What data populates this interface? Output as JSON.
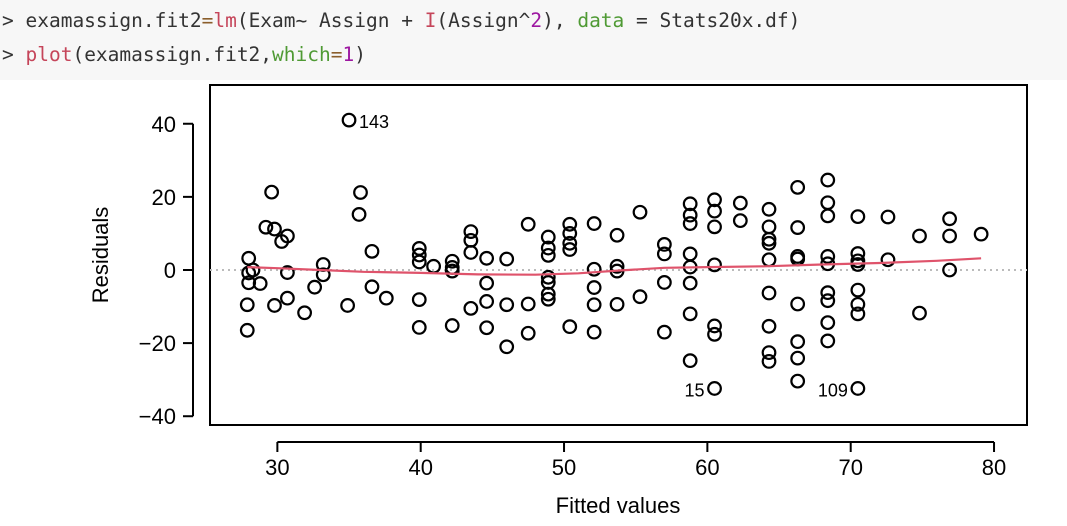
{
  "console": {
    "lines": [
      [
        {
          "t": "> ",
          "c": "def"
        },
        {
          "t": "examassign.fit2",
          "c": "def"
        },
        {
          "t": "=",
          "c": "op"
        },
        {
          "t": "lm",
          "c": "fn"
        },
        {
          "t": "(Exam~ Assign + ",
          "c": "def"
        },
        {
          "t": "I",
          "c": "fn"
        },
        {
          "t": "(Assign^",
          "c": "def"
        },
        {
          "t": "2",
          "c": "num"
        },
        {
          "t": "), ",
          "c": "def"
        },
        {
          "t": "data",
          "c": "arg"
        },
        {
          "t": " = Stats20x.df)",
          "c": "def"
        }
      ],
      [
        {
          "t": "> ",
          "c": "def"
        },
        {
          "t": "plot",
          "c": "fn"
        },
        {
          "t": "(examassign.fit2,",
          "c": "def"
        },
        {
          "t": "which",
          "c": "arg"
        },
        {
          "t": "=",
          "c": "op"
        },
        {
          "t": "1",
          "c": "num"
        },
        {
          "t": ")",
          "c": "def"
        }
      ]
    ]
  },
  "chart_data": {
    "type": "scatter",
    "xlabel": "Fitted values",
    "ylabel": "Residuals",
    "xlim": [
      25.3,
      82.3
    ],
    "ylim": [
      -42.4,
      50.6
    ],
    "xticks": [
      30,
      40,
      50,
      60,
      70,
      80
    ],
    "yticks": [
      -40,
      -20,
      0,
      20,
      40
    ],
    "zero_line": {
      "y": 0,
      "style": "dotted",
      "color": "#bbbbbb"
    },
    "smoother_color": "#df536b",
    "points": [
      [
        35,
        41
      ],
      [
        28.0,
        3.2
      ],
      [
        28.0,
        -0.8
      ],
      [
        28.0,
        -3.5
      ],
      [
        27.9,
        -9.5
      ],
      [
        27.9,
        -16.5
      ],
      [
        28.3,
        0.0
      ],
      [
        28.8,
        -3.7
      ],
      [
        29.2,
        11.7
      ],
      [
        29.6,
        21.3
      ],
      [
        29.8,
        11.2
      ],
      [
        29.8,
        -9.7
      ],
      [
        30.3,
        7.8
      ],
      [
        30.7,
        9.3
      ],
      [
        30.7,
        -0.7
      ],
      [
        30.7,
        -7.7
      ],
      [
        31.9,
        -11.7
      ],
      [
        32.6,
        -4.7
      ],
      [
        33.2,
        1.5
      ],
      [
        33.2,
        -1.3
      ],
      [
        34.9,
        -9.7
      ],
      [
        35.8,
        21.2
      ],
      [
        35.7,
        15.2
      ],
      [
        36.6,
        5.1
      ],
      [
        36.6,
        -4.6
      ],
      [
        37.6,
        -7.7
      ],
      [
        39.9,
        5.9
      ],
      [
        39.9,
        4.1
      ],
      [
        39.9,
        2.2
      ],
      [
        39.9,
        -8.1
      ],
      [
        39.9,
        -15.7
      ],
      [
        40.9,
        1.0
      ],
      [
        42.2,
        2.4
      ],
      [
        42.2,
        0.7
      ],
      [
        42.2,
        -0.3
      ],
      [
        42.2,
        -15.2
      ],
      [
        43.5,
        10.5
      ],
      [
        43.5,
        8.1
      ],
      [
        43.5,
        4.8
      ],
      [
        43.5,
        -10.5
      ],
      [
        44.6,
        3.2
      ],
      [
        44.6,
        -3.6
      ],
      [
        44.6,
        -8.6
      ],
      [
        44.6,
        -15.8
      ],
      [
        46.0,
        3.0
      ],
      [
        46.0,
        -9.5
      ],
      [
        46.0,
        -21.0
      ],
      [
        47.5,
        12.5
      ],
      [
        47.5,
        -9.3
      ],
      [
        47.5,
        -17.3
      ],
      [
        48.9,
        9.0
      ],
      [
        48.9,
        6.0
      ],
      [
        48.9,
        4.0
      ],
      [
        48.9,
        -2.0
      ],
      [
        48.9,
        -3.4
      ],
      [
        48.9,
        -6.6
      ],
      [
        48.9,
        -8.0
      ],
      [
        50.4,
        12.5
      ],
      [
        50.4,
        10.0
      ],
      [
        50.4,
        7.3
      ],
      [
        50.4,
        5.6
      ],
      [
        50.4,
        -15.5
      ],
      [
        52.1,
        12.7
      ],
      [
        52.1,
        0.2
      ],
      [
        52.1,
        -4.8
      ],
      [
        52.1,
        -9.5
      ],
      [
        52.1,
        -17.0
      ],
      [
        53.7,
        9.5
      ],
      [
        53.7,
        1.0
      ],
      [
        53.7,
        -0.3
      ],
      [
        53.7,
        -9.4
      ],
      [
        55.3,
        15.8
      ],
      [
        55.3,
        -7.3
      ],
      [
        57.0,
        7.0
      ],
      [
        57.0,
        4.4
      ],
      [
        57.0,
        -3.4
      ],
      [
        57.0,
        -17.0
      ],
      [
        58.8,
        18.1
      ],
      [
        58.8,
        15.0
      ],
      [
        58.8,
        12.7
      ],
      [
        58.8,
        4.4
      ],
      [
        58.8,
        0.8
      ],
      [
        58.8,
        -3.6
      ],
      [
        58.8,
        -12.0
      ],
      [
        58.8,
        -24.8
      ],
      [
        60.5,
        19.2
      ],
      [
        60.5,
        16.1
      ],
      [
        60.5,
        11.8
      ],
      [
        60.5,
        1.4
      ],
      [
        60.5,
        -15.3
      ],
      [
        60.5,
        -17.6
      ],
      [
        60.5,
        -32.4
      ],
      [
        62.3,
        18.3
      ],
      [
        62.3,
        13.5
      ],
      [
        64.3,
        16.6
      ],
      [
        64.3,
        11.8
      ],
      [
        64.3,
        8.4
      ],
      [
        64.3,
        7.3
      ],
      [
        64.3,
        2.8
      ],
      [
        64.3,
        -6.3
      ],
      [
        64.3,
        -15.4
      ],
      [
        64.3,
        -22.6
      ],
      [
        64.3,
        -25.0
      ],
      [
        66.3,
        22.6
      ],
      [
        66.3,
        11.6
      ],
      [
        66.3,
        3.7
      ],
      [
        66.3,
        3.0
      ],
      [
        66.3,
        -9.3
      ],
      [
        66.3,
        -19.6
      ],
      [
        66.3,
        -24.1
      ],
      [
        66.3,
        -30.4
      ],
      [
        68.4,
        24.6
      ],
      [
        68.4,
        18.4
      ],
      [
        68.4,
        14.8
      ],
      [
        68.4,
        3.7
      ],
      [
        68.4,
        1.7
      ],
      [
        68.4,
        -6.2
      ],
      [
        68.4,
        -8.4
      ],
      [
        68.4,
        -14.4
      ],
      [
        68.4,
        -19.4
      ],
      [
        70.5,
        14.6
      ],
      [
        70.5,
        4.5
      ],
      [
        70.5,
        2.5
      ],
      [
        70.5,
        1.5
      ],
      [
        70.5,
        -5.5
      ],
      [
        70.5,
        -9.4
      ],
      [
        70.5,
        -12.0
      ],
      [
        70.5,
        -32.4
      ],
      [
        72.6,
        14.5
      ],
      [
        72.6,
        2.8
      ],
      [
        74.8,
        9.3
      ],
      [
        74.8,
        -11.8
      ],
      [
        76.9,
        14.0
      ],
      [
        76.9,
        9.3
      ],
      [
        76.9,
        0.0
      ],
      [
        79.1,
        9.8
      ]
    ],
    "smoother": [
      [
        27.9,
        0.8
      ],
      [
        30,
        0.5
      ],
      [
        33,
        0.0
      ],
      [
        36,
        -0.5
      ],
      [
        40,
        -0.8
      ],
      [
        44,
        -1.2
      ],
      [
        48,
        -1.3
      ],
      [
        51,
        -0.9
      ],
      [
        54,
        -0.1
      ],
      [
        57,
        0.6
      ],
      [
        60,
        0.8
      ],
      [
        64,
        1.0
      ],
      [
        68,
        1.5
      ],
      [
        72,
        1.9
      ],
      [
        76,
        2.5
      ],
      [
        79.1,
        3.2
      ]
    ],
    "annotations": [
      {
        "label": "143",
        "x": 35,
        "y": 41,
        "pos": "right"
      },
      {
        "label": "15",
        "x": 60.5,
        "y": -32.4,
        "pos": "left"
      },
      {
        "label": "109",
        "x": 70.5,
        "y": -32.4,
        "pos": "left"
      }
    ]
  }
}
